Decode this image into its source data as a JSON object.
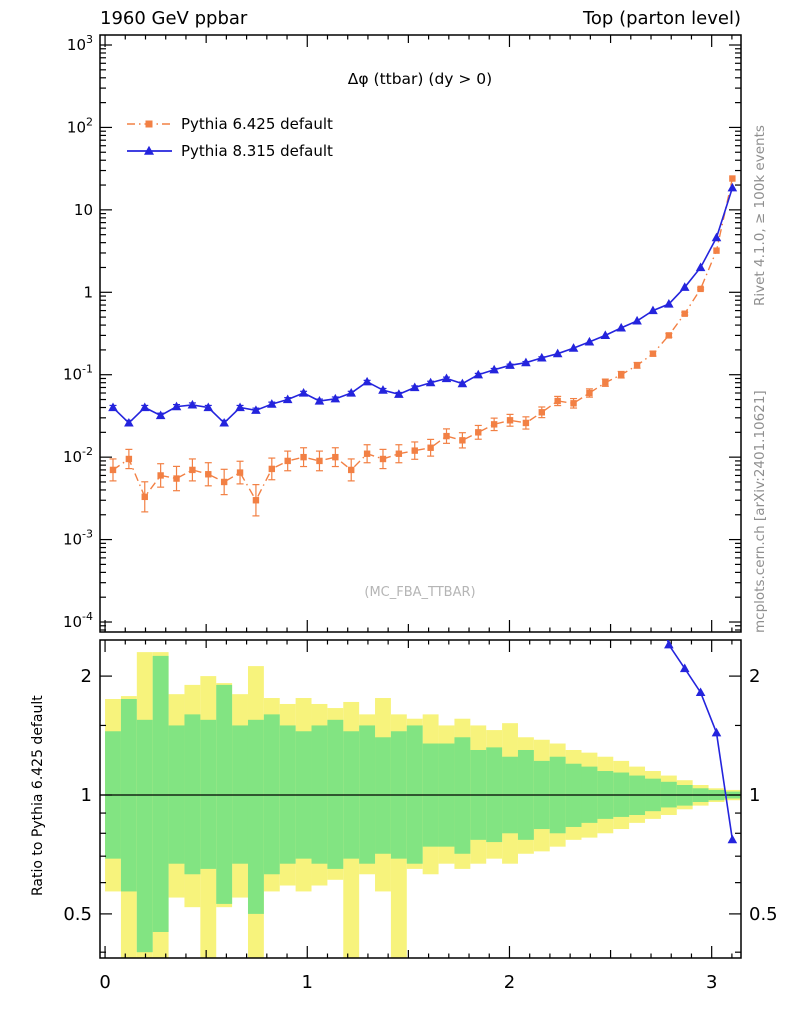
{
  "header": {
    "left": "1960 GeV ppbar",
    "right": "Top (parton level)"
  },
  "side_notes": {
    "top": "Rivet 4.1.0, ≥ 100k events",
    "bottom": "mcplots.cern.ch [arXiv:2401.10621]"
  },
  "watermark": "(MC_FBA_TTBAR)",
  "ratio_ylabel": "Ratio to Pythia 6.425 default",
  "chart_data": {
    "type": "line",
    "title": "Δφ (ttbar) (dy > 0)",
    "x_range": [
      0,
      3.14159
    ],
    "n_bins": 40,
    "y_log_range": [
      -4,
      3
    ],
    "x_major_ticks": [
      0,
      1,
      2,
      3
    ],
    "ratio_ticks": [
      2,
      1,
      0.5
    ],
    "ratio_minor_ticks": [
      0.4,
      0.6,
      0.7,
      0.8,
      0.9,
      1.5
    ],
    "series": [
      {
        "name": "Pythia 6.425 default",
        "color": "#f28044",
        "marker": "square",
        "line": "dashdot",
        "err_coef": 0.03,
        "values": [
          0.007,
          0.0095,
          0.0033,
          0.006,
          0.0055,
          0.007,
          0.0062,
          0.005,
          0.0065,
          0.003,
          0.0072,
          0.009,
          0.01,
          0.009,
          0.01,
          0.007,
          0.011,
          0.0095,
          0.011,
          0.012,
          0.013,
          0.018,
          0.016,
          0.02,
          0.025,
          0.028,
          0.026,
          0.035,
          0.048,
          0.045,
          0.06,
          0.08,
          0.1,
          0.13,
          0.18,
          0.3,
          0.55,
          1.1,
          3.2,
          24
        ]
      },
      {
        "name": "Pythia 8.315 default",
        "color": "#2424dd",
        "marker": "triangle",
        "line": "solid",
        "err_coef": 0.012,
        "values": [
          0.04,
          0.026,
          0.04,
          0.032,
          0.041,
          0.043,
          0.04,
          0.026,
          0.04,
          0.037,
          0.044,
          0.05,
          0.06,
          0.048,
          0.051,
          0.06,
          0.082,
          0.065,
          0.058,
          0.07,
          0.08,
          0.09,
          0.078,
          0.1,
          0.115,
          0.13,
          0.14,
          0.16,
          0.18,
          0.21,
          0.25,
          0.3,
          0.37,
          0.45,
          0.6,
          0.72,
          1.15,
          2.0,
          4.6,
          18.5
        ]
      }
    ],
    "ratio_bands": {
      "yellow_color": "#f7f37c",
      "green_color": "#82e482",
      "yellow_hi": [
        1.75,
        1.78,
        2.3,
        2.3,
        1.8,
        1.9,
        2.0,
        1.92,
        1.8,
        2.12,
        1.76,
        1.7,
        1.76,
        1.7,
        1.66,
        1.72,
        1.6,
        1.76,
        1.6,
        1.56,
        1.6,
        1.5,
        1.56,
        1.5,
        1.46,
        1.52,
        1.4,
        1.38,
        1.35,
        1.3,
        1.28,
        1.25,
        1.22,
        1.18,
        1.15,
        1.12,
        1.09,
        1.06,
        1.04,
        1.03
      ],
      "yellow_lo": [
        0.57,
        0.35,
        0.35,
        0.35,
        0.55,
        0.52,
        0.35,
        0.52,
        0.55,
        0.35,
        0.57,
        0.59,
        0.57,
        0.59,
        0.61,
        0.35,
        0.63,
        0.57,
        0.35,
        0.65,
        0.63,
        0.67,
        0.65,
        0.67,
        0.69,
        0.67,
        0.71,
        0.72,
        0.74,
        0.77,
        0.78,
        0.8,
        0.82,
        0.85,
        0.87,
        0.89,
        0.92,
        0.94,
        0.96,
        0.97
      ],
      "green_hi": [
        1.45,
        1.75,
        1.55,
        2.25,
        1.5,
        1.6,
        1.55,
        1.9,
        1.5,
        1.55,
        1.6,
        1.5,
        1.45,
        1.5,
        1.55,
        1.45,
        1.5,
        1.4,
        1.45,
        1.5,
        1.35,
        1.35,
        1.4,
        1.3,
        1.32,
        1.25,
        1.3,
        1.22,
        1.25,
        1.2,
        1.18,
        1.15,
        1.14,
        1.12,
        1.1,
        1.08,
        1.06,
        1.04,
        1.03,
        1.02
      ],
      "green_lo": [
        0.69,
        0.57,
        0.4,
        0.45,
        0.67,
        0.63,
        0.65,
        0.53,
        0.67,
        0.5,
        0.63,
        0.67,
        0.69,
        0.67,
        0.65,
        0.69,
        0.67,
        0.71,
        0.69,
        0.67,
        0.74,
        0.74,
        0.71,
        0.77,
        0.76,
        0.8,
        0.77,
        0.82,
        0.8,
        0.83,
        0.85,
        0.87,
        0.88,
        0.89,
        0.91,
        0.93,
        0.94,
        0.96,
        0.97,
        0.98
      ]
    }
  }
}
